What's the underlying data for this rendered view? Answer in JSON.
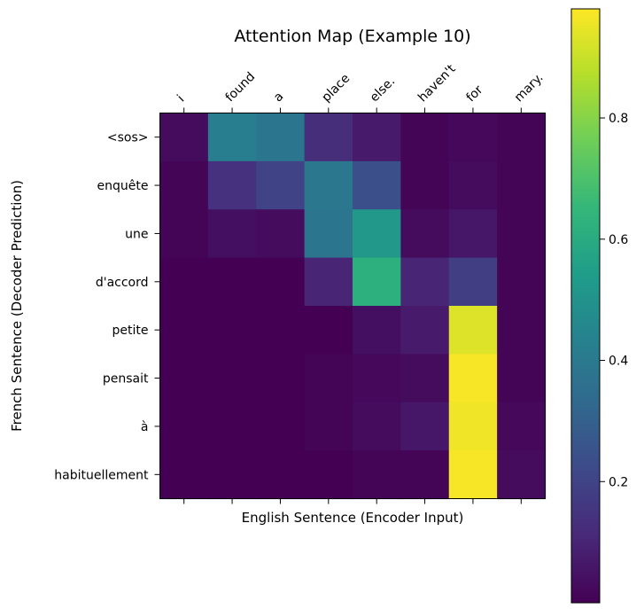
{
  "chart_data": {
    "type": "heatmap",
    "title": "Attention Map (Example 10)",
    "xlabel": "English Sentence (Encoder Input)",
    "ylabel": "French Sentence (Decoder Prediction)",
    "x_labels": [
      "i",
      "found",
      "a",
      "place",
      "else.",
      "haven't",
      "for",
      "mary."
    ],
    "y_labels": [
      "<sos>",
      "enquête",
      "une",
      "d'accord",
      "petite",
      "pensait",
      "à",
      "habituellement"
    ],
    "values": [
      [
        0.03,
        0.42,
        0.38,
        0.13,
        0.07,
        0.01,
        0.02,
        0.01
      ],
      [
        0.01,
        0.14,
        0.2,
        0.39,
        0.24,
        0.01,
        0.03,
        0.01
      ],
      [
        0.01,
        0.04,
        0.03,
        0.38,
        0.52,
        0.03,
        0.06,
        0.01
      ],
      [
        0.0,
        0.0,
        0.0,
        0.1,
        0.62,
        0.1,
        0.18,
        0.01
      ],
      [
        0.0,
        0.0,
        0.0,
        0.0,
        0.04,
        0.07,
        0.93,
        0.01
      ],
      [
        0.0,
        0.0,
        0.0,
        0.01,
        0.02,
        0.03,
        0.97,
        0.01
      ],
      [
        0.0,
        0.0,
        0.0,
        0.01,
        0.03,
        0.06,
        0.96,
        0.02
      ],
      [
        0.0,
        0.0,
        0.0,
        0.0,
        0.01,
        0.01,
        0.97,
        0.03
      ]
    ],
    "colormap": "viridis",
    "vmin": 0.0,
    "vmax": 0.98,
    "colorbar_ticks": [
      0.2,
      0.4,
      0.6,
      0.8
    ],
    "colorbar_tick_labels": [
      "0.2",
      "0.4",
      "0.6",
      "0.8"
    ],
    "x_ticks_position": "top",
    "grid": false
  }
}
